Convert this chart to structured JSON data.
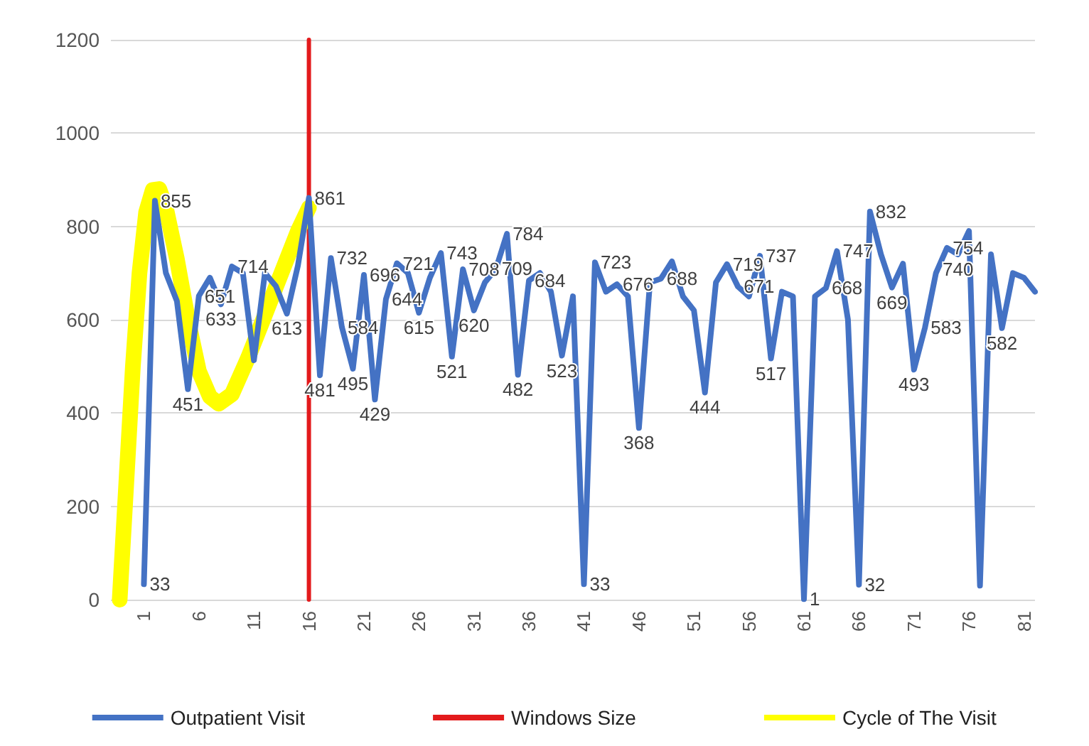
{
  "chart_data": {
    "type": "line",
    "xlim": [
      -2,
      82
    ],
    "xticks": [
      1,
      6,
      11,
      16,
      21,
      26,
      31,
      36,
      41,
      46,
      51,
      56,
      61,
      66,
      71,
      76,
      81
    ],
    "ylim": [
      0,
      1200
    ],
    "yticks": [
      0,
      200,
      400,
      600,
      800,
      1000,
      1200
    ],
    "grid": "y",
    "legend": "bottom",
    "marker": "none",
    "series": [
      {
        "name": "Outpatient Visit",
        "color": "#4472c4",
        "x": [
          1,
          2,
          3,
          4,
          5,
          6,
          7,
          8,
          9,
          10,
          11,
          12,
          13,
          14,
          15,
          16,
          17,
          18,
          19,
          20,
          21,
          22,
          23,
          24,
          25,
          26,
          27,
          28,
          29,
          30,
          31,
          32,
          33,
          34,
          35,
          36,
          37,
          38,
          39,
          40,
          41,
          42,
          43,
          44,
          45,
          46,
          47,
          48,
          49,
          50,
          51,
          52,
          53,
          54,
          55,
          56,
          57,
          58,
          59,
          60,
          61,
          62,
          63,
          64,
          65,
          66,
          67,
          68,
          69,
          70,
          71,
          72,
          73,
          74,
          75,
          76,
          77,
          78,
          79,
          80,
          81,
          82
        ],
        "values": [
          33,
          855,
          700,
          640,
          451,
          651,
          690,
          633,
          714,
          700,
          513,
          700,
          672,
          613,
          716,
          861,
          481,
          732,
          584,
          495,
          696,
          429,
          644,
          721,
          700,
          615,
          690,
          743,
          521,
          708,
          620,
          680,
          709,
          784,
          482,
          684,
          700,
          660,
          523,
          650,
          33,
          723,
          660,
          676,
          650,
          368,
          680,
          688,
          725,
          650,
          620,
          444,
          680,
          719,
          671,
          650,
          737,
          517,
          660,
          650,
          1,
          650,
          668,
          747,
          600,
          32,
          832,
          740,
          669,
          720,
          493,
          583,
          700,
          754,
          740,
          790,
          30,
          740,
          582,
          700,
          690,
          660
        ],
        "value_labels": [
          "33",
          "855",
          null,
          null,
          "451",
          "651",
          null,
          "633",
          "714",
          null,
          null,
          null,
          null,
          "613",
          null,
          "861",
          "481",
          "732",
          "584",
          "495",
          "696",
          "429",
          "644",
          "721",
          null,
          "615",
          null,
          "743",
          "521",
          "708",
          "620",
          null,
          "709",
          "784",
          "482",
          "684",
          null,
          null,
          "523",
          null,
          "33",
          "723",
          null,
          "676",
          null,
          "368",
          null,
          "688",
          null,
          null,
          null,
          "444",
          null,
          "719",
          "671",
          null,
          "737",
          "517",
          null,
          null,
          "1",
          null,
          "668",
          "747",
          null,
          "32",
          "832",
          null,
          "669",
          null,
          "493",
          "583",
          null,
          "754",
          "740",
          null,
          null,
          null,
          "582",
          null,
          null,
          null
        ]
      },
      {
        "name": "Windows Size",
        "color": "#e31a1c",
        "x": [
          16,
          16
        ],
        "values": [
          0,
          1200
        ]
      },
      {
        "name": "Cycle of The Visit",
        "color": "#ffff00",
        "x": [
          -1.2,
          -0.6,
          0,
          0.6,
          1.2,
          1.8,
          2.4,
          3,
          4,
          5,
          6,
          7,
          7.8,
          9,
          10.5,
          12,
          13.5,
          15,
          16
        ],
        "values": [
          0,
          250,
          500,
          700,
          830,
          878,
          880,
          840,
          730,
          600,
          490,
          435,
          420,
          440,
          520,
          610,
          700,
          790,
          840
        ]
      }
    ]
  }
}
